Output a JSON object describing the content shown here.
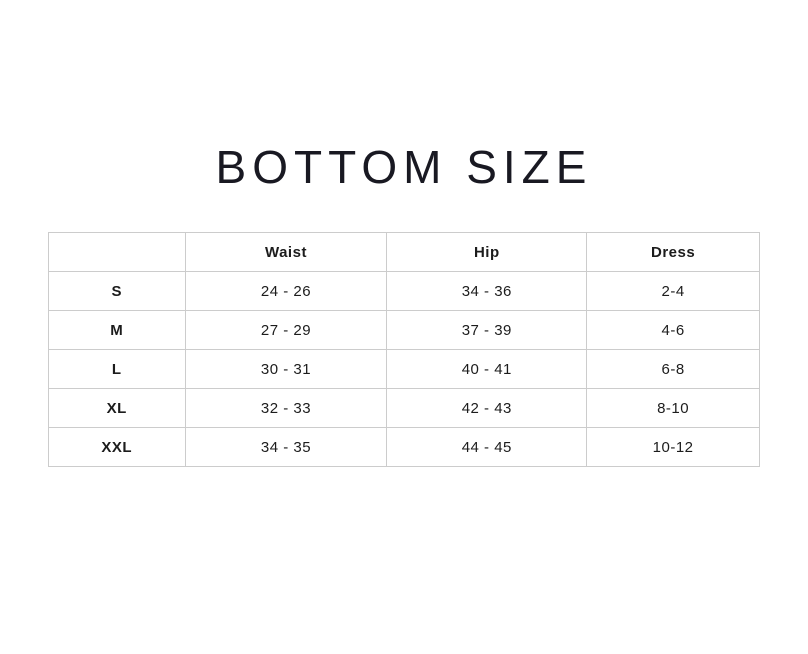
{
  "title": "BOTTOM SIZE",
  "table": {
    "headers": [
      "",
      "Waist",
      "Hip",
      "Dress"
    ],
    "rows": [
      {
        "size": "S",
        "waist": "24 - 26",
        "hip": "34 - 36",
        "dress": "2-4"
      },
      {
        "size": "M",
        "waist": "27 - 29",
        "hip": "37 - 39",
        "dress": "4-6"
      },
      {
        "size": "L",
        "waist": "30 - 31",
        "hip": "40 - 41",
        "dress": "6-8"
      },
      {
        "size": "XL",
        "waist": "32 - 33",
        "hip": "42 - 43",
        "dress": "8-10"
      },
      {
        "size": "XXL",
        "waist": "34 - 35",
        "hip": "44 - 45",
        "dress": "10-12"
      }
    ]
  },
  "colors": {
    "background": "#ffffff",
    "border": "#cccccc",
    "text": "#1c1c1c"
  }
}
